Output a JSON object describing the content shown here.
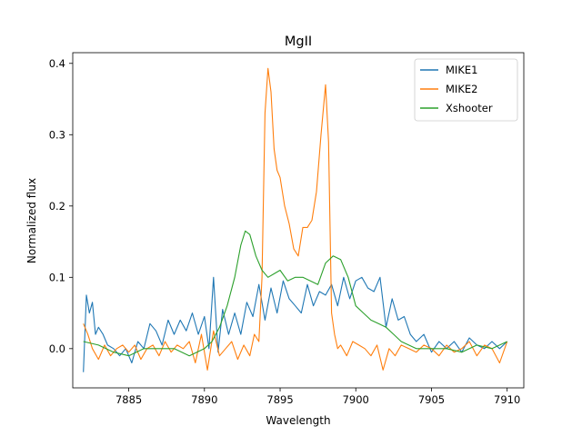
{
  "chart_data": {
    "type": "line",
    "title": "MgII",
    "xlabel": "Wavelength",
    "ylabel": "Normalized flux",
    "xlim": [
      7881.3,
      7911.1
    ],
    "ylim": [
      -0.055,
      0.415
    ],
    "xticks": [
      7885,
      7890,
      7895,
      7900,
      7905,
      7910
    ],
    "xtick_labels": [
      "7885",
      "7890",
      "7895",
      "7900",
      "7905",
      "7910"
    ],
    "yticks": [
      0.0,
      0.1,
      0.2,
      0.3,
      0.4
    ],
    "ytick_labels": [
      "0.0",
      "0.1",
      "0.2",
      "0.3",
      "0.4"
    ],
    "grid": false,
    "legend_position": "top-right",
    "series": [
      {
        "name": "MIKE1",
        "color": "#1f77b4",
        "x": [
          7882.0,
          7882.2,
          7882.4,
          7882.6,
          7882.8,
          7883.0,
          7883.3,
          7883.6,
          7884.0,
          7884.4,
          7884.8,
          7885.2,
          7885.6,
          7886.0,
          7886.4,
          7886.8,
          7887.2,
          7887.6,
          7888.0,
          7888.4,
          7888.8,
          7889.2,
          7889.6,
          7890.0,
          7890.3,
          7890.6,
          7890.9,
          7891.2,
          7891.6,
          7892.0,
          7892.4,
          7892.8,
          7893.2,
          7893.6,
          7894.0,
          7894.4,
          7894.8,
          7895.2,
          7895.6,
          7896.0,
          7896.4,
          7896.8,
          7897.2,
          7897.6,
          7898.0,
          7898.4,
          7898.8,
          7899.2,
          7899.6,
          7900.0,
          7900.4,
          7900.8,
          7901.2,
          7901.6,
          7902.0,
          7902.4,
          7902.8,
          7903.2,
          7903.6,
          7904.0,
          7904.5,
          7905.0,
          7905.5,
          7906.0,
          7906.5,
          7907.0,
          7907.5,
          7908.0,
          7908.5,
          7909.0,
          7909.5,
          7910.0
        ],
        "y": [
          -0.033,
          0.075,
          0.05,
          0.065,
          0.02,
          0.03,
          0.02,
          0.005,
          0.0,
          -0.01,
          0.0,
          -0.02,
          0.01,
          0.0,
          0.035,
          0.025,
          0.005,
          0.04,
          0.02,
          0.04,
          0.025,
          0.05,
          0.02,
          0.045,
          0.0,
          0.1,
          -0.005,
          0.055,
          0.02,
          0.05,
          0.02,
          0.065,
          0.045,
          0.09,
          0.04,
          0.085,
          0.05,
          0.095,
          0.07,
          0.06,
          0.05,
          0.09,
          0.06,
          0.08,
          0.075,
          0.09,
          0.06,
          0.1,
          0.07,
          0.095,
          0.1,
          0.085,
          0.08,
          0.1,
          0.03,
          0.07,
          0.04,
          0.045,
          0.02,
          0.01,
          0.02,
          -0.005,
          0.01,
          0.0,
          0.01,
          -0.005,
          0.015,
          0.005,
          0.0,
          0.01,
          0.0,
          0.01
        ]
      },
      {
        "name": "MIKE2",
        "color": "#ff7f0e",
        "x": [
          7882.0,
          7882.3,
          7882.6,
          7883.0,
          7883.4,
          7883.8,
          7884.2,
          7884.6,
          7885.0,
          7885.4,
          7885.8,
          7886.2,
          7886.6,
          7887.0,
          7887.4,
          7887.8,
          7888.2,
          7888.6,
          7889.0,
          7889.4,
          7889.8,
          7890.2,
          7890.6,
          7891.0,
          7891.4,
          7891.8,
          7892.2,
          7892.6,
          7893.0,
          7893.3,
          7893.6,
          7893.8,
          7894.0,
          7894.2,
          7894.4,
          7894.6,
          7894.8,
          7895.0,
          7895.3,
          7895.6,
          7895.9,
          7896.2,
          7896.5,
          7896.8,
          7897.1,
          7897.4,
          7897.7,
          7898.0,
          7898.2,
          7898.4,
          7898.6,
          7898.8,
          7899.0,
          7899.4,
          7899.8,
          7900.2,
          7900.6,
          7901.0,
          7901.4,
          7901.8,
          7902.2,
          7902.6,
          7903.0,
          7903.5,
          7904.0,
          7904.5,
          7905.0,
          7905.5,
          7906.0,
          7906.5,
          7907.0,
          7907.5,
          7908.0,
          7908.5,
          7909.0,
          7909.5,
          7910.0
        ],
        "y": [
          0.035,
          0.02,
          0.0,
          -0.015,
          0.005,
          -0.01,
          0.0,
          0.005,
          -0.005,
          0.005,
          -0.015,
          0.0,
          0.005,
          -0.01,
          0.01,
          -0.005,
          0.005,
          0.0,
          0.01,
          -0.02,
          0.02,
          -0.03,
          0.025,
          -0.01,
          0.0,
          0.01,
          -0.015,
          0.005,
          -0.01,
          0.02,
          0.01,
          0.1,
          0.33,
          0.393,
          0.36,
          0.28,
          0.25,
          0.24,
          0.2,
          0.175,
          0.14,
          0.13,
          0.17,
          0.17,
          0.18,
          0.22,
          0.3,
          0.37,
          0.29,
          0.05,
          0.02,
          0.0,
          0.005,
          -0.01,
          0.01,
          0.005,
          0.0,
          -0.01,
          0.005,
          -0.03,
          0.0,
          -0.01,
          0.005,
          0.0,
          -0.005,
          0.005,
          0.0,
          -0.01,
          0.005,
          -0.005,
          0.0,
          0.01,
          -0.01,
          0.005,
          0.0,
          -0.02,
          0.01
        ]
      },
      {
        "name": "Xshooter",
        "color": "#2ca02c",
        "x": [
          7882.0,
          7883.0,
          7884.0,
          7885.0,
          7886.0,
          7887.0,
          7888.0,
          7889.0,
          7890.0,
          7890.5,
          7891.0,
          7891.5,
          7892.0,
          7892.4,
          7892.7,
          7893.0,
          7893.4,
          7893.8,
          7894.2,
          7894.6,
          7895.0,
          7895.5,
          7896.0,
          7896.5,
          7897.0,
          7897.5,
          7898.0,
          7898.5,
          7899.0,
          7899.5,
          7900.0,
          7900.5,
          7901.0,
          7901.5,
          7902.0,
          7902.5,
          7903.0,
          7903.5,
          7904.0,
          7905.0,
          7906.0,
          7907.0,
          7908.0,
          7909.0,
          7910.0
        ],
        "y": [
          0.01,
          0.005,
          -0.005,
          -0.01,
          0.0,
          0.0,
          0.0,
          -0.01,
          0.0,
          0.01,
          0.03,
          0.06,
          0.1,
          0.145,
          0.165,
          0.16,
          0.13,
          0.11,
          0.1,
          0.105,
          0.11,
          0.095,
          0.1,
          0.1,
          0.095,
          0.09,
          0.12,
          0.13,
          0.125,
          0.1,
          0.06,
          0.05,
          0.04,
          0.035,
          0.03,
          0.02,
          0.01,
          0.005,
          0.0,
          0.0,
          0.0,
          -0.005,
          0.005,
          0.0,
          0.01
        ]
      }
    ]
  }
}
